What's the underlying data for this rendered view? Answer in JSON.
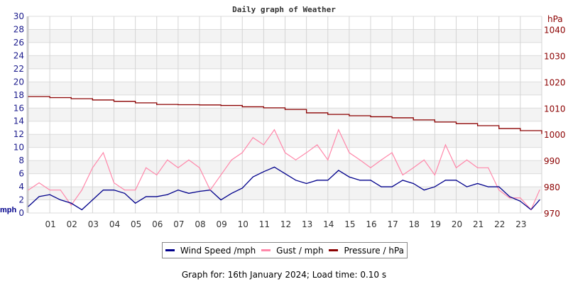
{
  "chart_data": {
    "type": "line",
    "title": "Daily graph of Weather",
    "x_tick_labels": [
      "01",
      "02",
      "03",
      "04",
      "05",
      "06",
      "07",
      "08",
      "09",
      "10",
      "11",
      "12",
      "13",
      "14",
      "15",
      "16",
      "17",
      "18",
      "19",
      "20",
      "21",
      "22",
      "23"
    ],
    "xlim": [
      0,
      24
    ],
    "x_unit": "hour",
    "left_axis": {
      "label": "mph",
      "ylim": [
        0,
        30
      ],
      "ticks": [
        0,
        2,
        4,
        6,
        8,
        10,
        12,
        14,
        16,
        18,
        20,
        22,
        24,
        26,
        28,
        30
      ],
      "color": "#1a1a8c"
    },
    "right_axis": {
      "label": "hPa",
      "ylim": [
        970,
        1045
      ],
      "ticks": [
        970,
        980,
        990,
        1000,
        1010,
        1020,
        1030,
        1040
      ],
      "color": "#8b0000"
    },
    "grid": true,
    "legend_position": "bottom",
    "series": [
      {
        "name": "Wind Speed /mph",
        "axis": "left",
        "color": "#00008b",
        "x": [
          0,
          0.5,
          1,
          1.5,
          2,
          2.5,
          3,
          3.5,
          4,
          4.5,
          5,
          5.5,
          6,
          6.5,
          7,
          7.5,
          8,
          8.5,
          9,
          9.5,
          10,
          10.5,
          11,
          11.5,
          12,
          12.5,
          13,
          13.5,
          14,
          14.5,
          15,
          15.5,
          16,
          16.5,
          17,
          17.5,
          18,
          18.5,
          19,
          19.5,
          20,
          20.5,
          21,
          21.5,
          22,
          22.5,
          23,
          23.5,
          23.9
        ],
        "values": [
          1,
          2.5,
          2.8,
          2,
          1.5,
          0.5,
          2,
          3.5,
          3.5,
          3,
          1.5,
          2.5,
          2.5,
          2.8,
          3.5,
          3,
          3.3,
          3.5,
          2,
          3,
          3.8,
          5.5,
          6.3,
          7,
          6,
          5,
          4.5,
          5,
          5,
          6.5,
          5.5,
          5,
          5,
          4,
          4,
          5,
          4.5,
          3.5,
          4,
          5,
          5,
          4,
          4.5,
          4,
          4,
          2.5,
          1.8,
          0.5,
          2
        ]
      },
      {
        "name": "Gust / mph",
        "axis": "left",
        "color": "#ff88aa",
        "x": [
          0,
          0.5,
          1,
          1.5,
          2,
          2.5,
          3,
          3.5,
          4,
          4.5,
          5,
          5.5,
          6,
          6.5,
          7,
          7.5,
          8,
          8.5,
          9,
          9.5,
          10,
          10.5,
          11,
          11.5,
          12,
          12.5,
          13,
          13.5,
          14,
          14.5,
          15,
          15.5,
          16,
          16.5,
          17,
          17.5,
          18,
          18.5,
          19,
          19.5,
          20,
          20.5,
          21,
          21.5,
          22,
          22.5,
          23,
          23.5,
          23.9
        ],
        "values": [
          3.5,
          4.6,
          3.5,
          3.5,
          1.2,
          3.5,
          6.9,
          9.2,
          4.6,
          3.5,
          3.5,
          6.9,
          5.8,
          8.1,
          6.9,
          8.1,
          6.9,
          3.5,
          5.8,
          8.1,
          9.2,
          11.5,
          10.4,
          12.7,
          9.2,
          8.1,
          9.2,
          10.4,
          8.1,
          12.7,
          9.2,
          8.1,
          6.9,
          8.1,
          9.2,
          5.8,
          6.9,
          8.1,
          5.8,
          10.4,
          6.9,
          8.1,
          6.9,
          6.9,
          3.5,
          2.3,
          2.3,
          0.5,
          3.5
        ]
      },
      {
        "name": "Pressure / hPa",
        "axis": "right",
        "color": "#8b0000",
        "x": [
          0,
          1,
          2,
          3,
          4,
          5,
          6,
          7,
          8,
          9,
          10,
          11,
          12,
          13,
          14,
          15,
          16,
          17,
          18,
          19,
          20,
          21,
          22,
          23,
          24
        ],
        "values": [
          1014.4,
          1014.0,
          1013.6,
          1013.1,
          1012.6,
          1012.0,
          1011.4,
          1011.3,
          1011.2,
          1011.0,
          1010.5,
          1010.1,
          1009.5,
          1008.2,
          1007.6,
          1007.1,
          1006.7,
          1006.3,
          1005.5,
          1004.7,
          1004.1,
          1003.3,
          1002.2,
          1001.4,
          1000.3
        ]
      }
    ]
  },
  "footer": "Graph for: 16th January 2024; Load time: 0.10 s"
}
